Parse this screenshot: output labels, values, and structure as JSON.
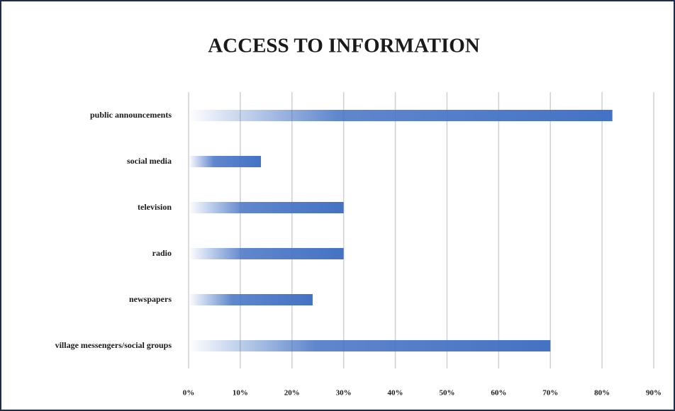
{
  "chart_data": {
    "type": "barh",
    "title": "ACCESS TO INFORMATION",
    "categories": [
      "public announcements",
      "social media",
      "television",
      "radio",
      "newspapers",
      "village messengers/social groups"
    ],
    "values": [
      82,
      14,
      30,
      30,
      24,
      70
    ],
    "color": "#4472c4",
    "xlim": [
      0,
      90
    ],
    "xticks": [
      {
        "value": 0,
        "label": "0%"
      },
      {
        "value": 10,
        "label": "10%"
      },
      {
        "value": 20,
        "label": "20%"
      },
      {
        "value": 30,
        "label": "30%"
      },
      {
        "value": 40,
        "label": "40%"
      },
      {
        "value": 50,
        "label": "50%"
      },
      {
        "value": 60,
        "label": "60%"
      },
      {
        "value": 70,
        "label": "70%"
      },
      {
        "value": 80,
        "label": "80%"
      },
      {
        "value": 90,
        "label": "90%"
      }
    ],
    "grid": true
  }
}
